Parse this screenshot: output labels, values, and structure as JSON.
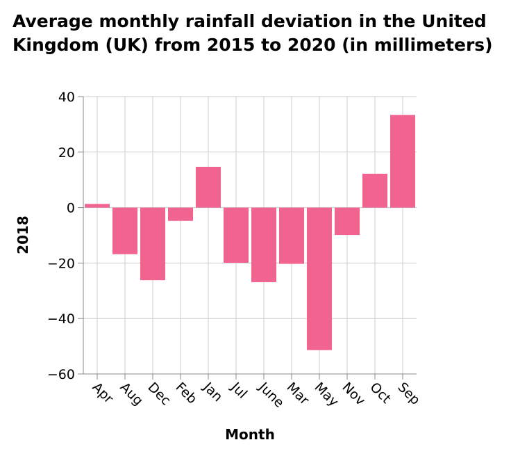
{
  "chart_data": {
    "type": "bar",
    "title": "Average monthly rainfall deviation in the United Kingdom (UK) from 2015 to 2020 (in millimeters)",
    "xlabel": "Month",
    "ylabel": "2018",
    "categories": [
      "Apr",
      "Aug",
      "Dec",
      "Feb",
      "Jan",
      "Jul",
      "June",
      "Mar",
      "May",
      "Nov",
      "Oct",
      "Sep"
    ],
    "values": [
      1.3,
      -16.8,
      -26.2,
      -4.8,
      14.7,
      -19.9,
      -26.9,
      -20.3,
      -51.4,
      -9.9,
      12.2,
      33.4
    ],
    "ylim": [
      -60,
      40
    ],
    "yticks": [
      40,
      20,
      0,
      -20,
      -40,
      -60
    ],
    "grid": true,
    "legend": "none",
    "bar_color": "#f0648f",
    "grid_color": "#cccccc"
  }
}
